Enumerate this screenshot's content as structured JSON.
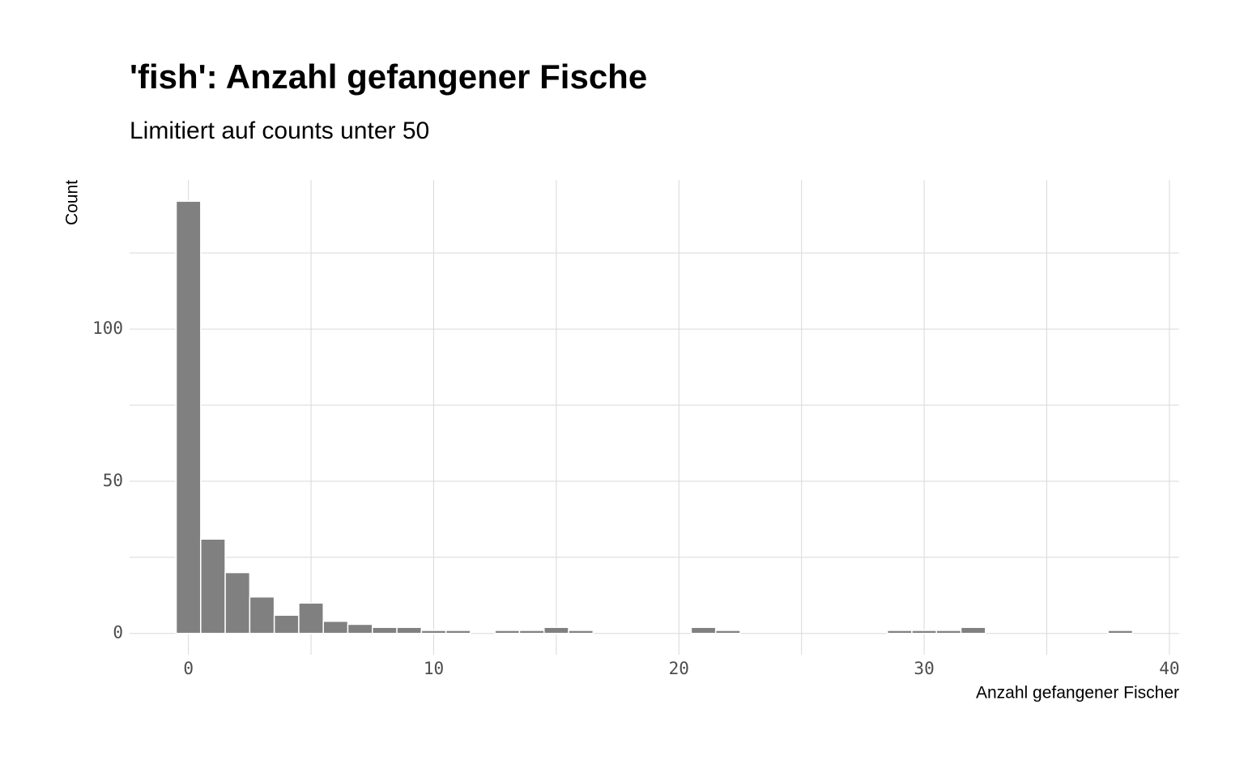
{
  "chart_data": {
    "type": "histogram",
    "title": "'fish': Anzahl gefangener Fische",
    "subtitle": "Limitiert auf counts unter 50",
    "x_label": "Anzahl gefangener Fischer",
    "y_label": "Count",
    "bins": [
      -0.5,
      0.5,
      1.5,
      2.5,
      3.5,
      4.5,
      5.5,
      6.5,
      7.5,
      8.5,
      9.5,
      10.5,
      11.5,
      12.5,
      13.5,
      14.5,
      15.5,
      16.5,
      17.5,
      18.5,
      19.5,
      20.5,
      21.5,
      22.5,
      23.5,
      24.5,
      25.5,
      26.5,
      27.5,
      28.5,
      29.5,
      30.5,
      31.5,
      32.5,
      33.5,
      34.5,
      35.5,
      36.5,
      37.5,
      38.5
    ],
    "values": [
      142,
      31,
      20,
      12,
      6,
      10,
      4,
      3,
      2,
      2,
      1,
      1,
      0,
      1,
      1,
      2,
      1,
      0,
      0,
      0,
      0,
      2,
      1,
      0,
      0,
      0,
      0,
      0,
      0,
      1,
      1,
      1,
      2,
      0,
      0,
      0,
      0,
      0,
      1
    ],
    "color": "#808080",
    "xlim": [
      -2.4,
      40.4
    ],
    "ylim": [
      -7,
      149
    ],
    "xticks": [
      0,
      10,
      20,
      30,
      40
    ],
    "yticks": [
      0,
      50,
      100
    ],
    "x_minor_ticks": [
      5,
      15,
      25,
      35
    ],
    "y_minor_ticks": [
      25,
      75,
      125
    ],
    "grid": true
  }
}
